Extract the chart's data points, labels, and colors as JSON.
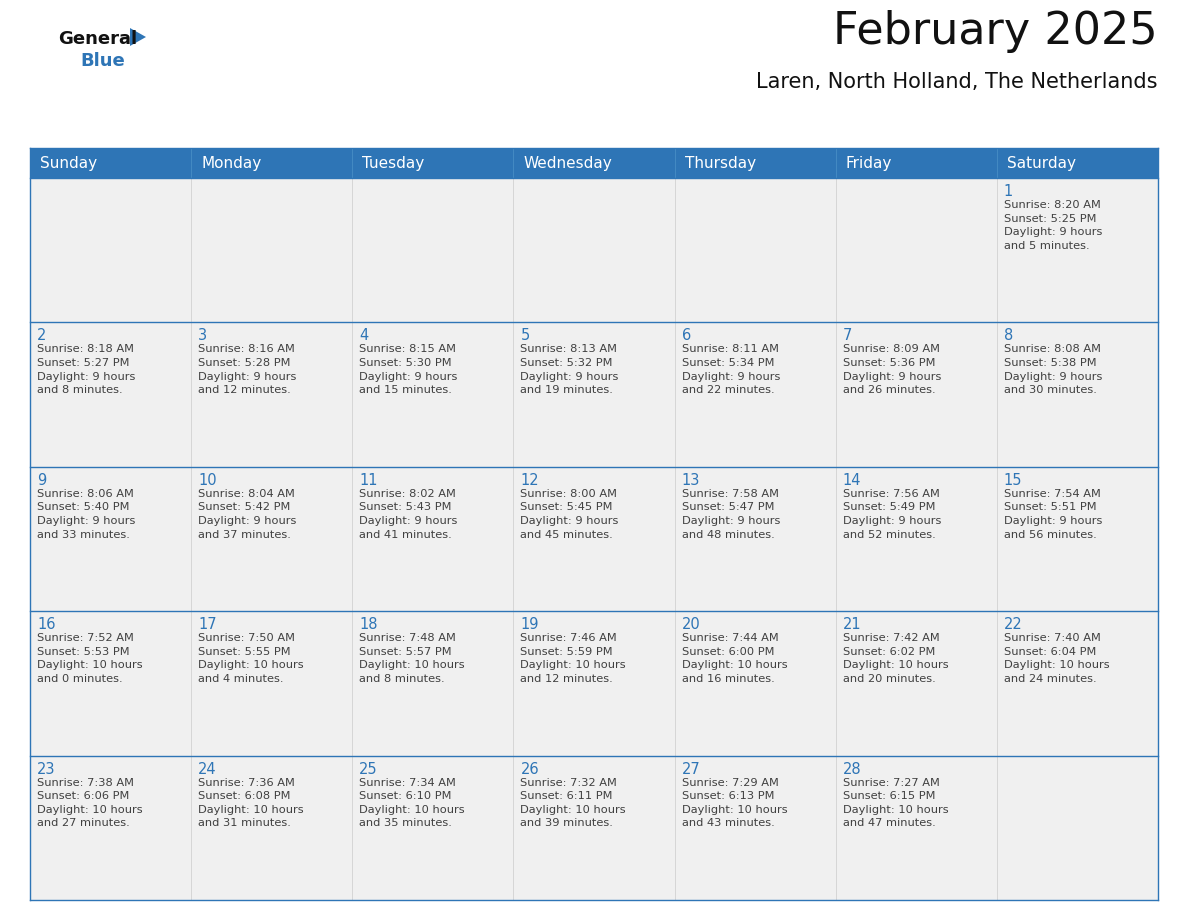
{
  "title": "February 2025",
  "subtitle": "Laren, North Holland, The Netherlands",
  "header_bg": "#2E75B6",
  "header_text_color": "#FFFFFF",
  "cell_bg_light": "#F0F0F0",
  "cell_bg_white": "#FFFFFF",
  "day_number_color": "#2E75B6",
  "text_color": "#404040",
  "border_color": "#2E75B6",
  "cell_border_color": "#2E75B6",
  "days_of_week": [
    "Sunday",
    "Monday",
    "Tuesday",
    "Wednesday",
    "Thursday",
    "Friday",
    "Saturday"
  ],
  "calendar": [
    [
      {
        "day": null,
        "info": null
      },
      {
        "day": null,
        "info": null
      },
      {
        "day": null,
        "info": null
      },
      {
        "day": null,
        "info": null
      },
      {
        "day": null,
        "info": null
      },
      {
        "day": null,
        "info": null
      },
      {
        "day": 1,
        "info": "Sunrise: 8:20 AM\nSunset: 5:25 PM\nDaylight: 9 hours\nand 5 minutes."
      }
    ],
    [
      {
        "day": 2,
        "info": "Sunrise: 8:18 AM\nSunset: 5:27 PM\nDaylight: 9 hours\nand 8 minutes."
      },
      {
        "day": 3,
        "info": "Sunrise: 8:16 AM\nSunset: 5:28 PM\nDaylight: 9 hours\nand 12 minutes."
      },
      {
        "day": 4,
        "info": "Sunrise: 8:15 AM\nSunset: 5:30 PM\nDaylight: 9 hours\nand 15 minutes."
      },
      {
        "day": 5,
        "info": "Sunrise: 8:13 AM\nSunset: 5:32 PM\nDaylight: 9 hours\nand 19 minutes."
      },
      {
        "day": 6,
        "info": "Sunrise: 8:11 AM\nSunset: 5:34 PM\nDaylight: 9 hours\nand 22 minutes."
      },
      {
        "day": 7,
        "info": "Sunrise: 8:09 AM\nSunset: 5:36 PM\nDaylight: 9 hours\nand 26 minutes."
      },
      {
        "day": 8,
        "info": "Sunrise: 8:08 AM\nSunset: 5:38 PM\nDaylight: 9 hours\nand 30 minutes."
      }
    ],
    [
      {
        "day": 9,
        "info": "Sunrise: 8:06 AM\nSunset: 5:40 PM\nDaylight: 9 hours\nand 33 minutes."
      },
      {
        "day": 10,
        "info": "Sunrise: 8:04 AM\nSunset: 5:42 PM\nDaylight: 9 hours\nand 37 minutes."
      },
      {
        "day": 11,
        "info": "Sunrise: 8:02 AM\nSunset: 5:43 PM\nDaylight: 9 hours\nand 41 minutes."
      },
      {
        "day": 12,
        "info": "Sunrise: 8:00 AM\nSunset: 5:45 PM\nDaylight: 9 hours\nand 45 minutes."
      },
      {
        "day": 13,
        "info": "Sunrise: 7:58 AM\nSunset: 5:47 PM\nDaylight: 9 hours\nand 48 minutes."
      },
      {
        "day": 14,
        "info": "Sunrise: 7:56 AM\nSunset: 5:49 PM\nDaylight: 9 hours\nand 52 minutes."
      },
      {
        "day": 15,
        "info": "Sunrise: 7:54 AM\nSunset: 5:51 PM\nDaylight: 9 hours\nand 56 minutes."
      }
    ],
    [
      {
        "day": 16,
        "info": "Sunrise: 7:52 AM\nSunset: 5:53 PM\nDaylight: 10 hours\nand 0 minutes."
      },
      {
        "day": 17,
        "info": "Sunrise: 7:50 AM\nSunset: 5:55 PM\nDaylight: 10 hours\nand 4 minutes."
      },
      {
        "day": 18,
        "info": "Sunrise: 7:48 AM\nSunset: 5:57 PM\nDaylight: 10 hours\nand 8 minutes."
      },
      {
        "day": 19,
        "info": "Sunrise: 7:46 AM\nSunset: 5:59 PM\nDaylight: 10 hours\nand 12 minutes."
      },
      {
        "day": 20,
        "info": "Sunrise: 7:44 AM\nSunset: 6:00 PM\nDaylight: 10 hours\nand 16 minutes."
      },
      {
        "day": 21,
        "info": "Sunrise: 7:42 AM\nSunset: 6:02 PM\nDaylight: 10 hours\nand 20 minutes."
      },
      {
        "day": 22,
        "info": "Sunrise: 7:40 AM\nSunset: 6:04 PM\nDaylight: 10 hours\nand 24 minutes."
      }
    ],
    [
      {
        "day": 23,
        "info": "Sunrise: 7:38 AM\nSunset: 6:06 PM\nDaylight: 10 hours\nand 27 minutes."
      },
      {
        "day": 24,
        "info": "Sunrise: 7:36 AM\nSunset: 6:08 PM\nDaylight: 10 hours\nand 31 minutes."
      },
      {
        "day": 25,
        "info": "Sunrise: 7:34 AM\nSunset: 6:10 PM\nDaylight: 10 hours\nand 35 minutes."
      },
      {
        "day": 26,
        "info": "Sunrise: 7:32 AM\nSunset: 6:11 PM\nDaylight: 10 hours\nand 39 minutes."
      },
      {
        "day": 27,
        "info": "Sunrise: 7:29 AM\nSunset: 6:13 PM\nDaylight: 10 hours\nand 43 minutes."
      },
      {
        "day": 28,
        "info": "Sunrise: 7:27 AM\nSunset: 6:15 PM\nDaylight: 10 hours\nand 47 minutes."
      },
      {
        "day": null,
        "info": null
      }
    ]
  ],
  "logo_text_general": "General",
  "logo_text_blue": "Blue",
  "logo_triangle_color": "#2E75B6",
  "fig_width": 11.88,
  "fig_height": 9.18,
  "dpi": 100
}
